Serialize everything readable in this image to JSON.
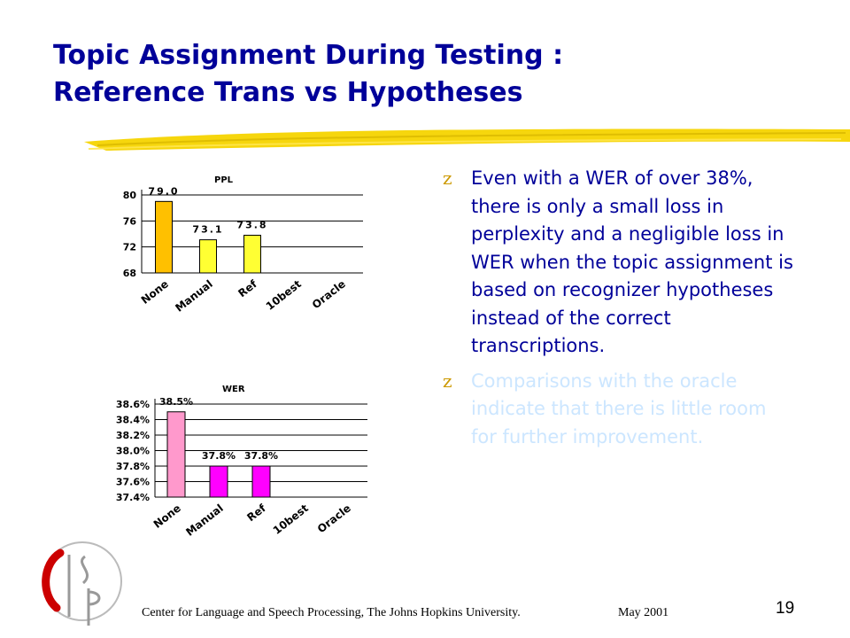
{
  "slide": {
    "title_line1": "Topic Assignment During Testing :",
    "title_line2": "Reference Trans vs Hypotheses",
    "bullets": [
      {
        "text": "Even with a WER of over 38%, there is only a small loss in perplexity and a negligible loss in WER when the topic assignment is based on recognizer hypotheses instead of the correct transcriptions.",
        "color": "#000099"
      },
      {
        "text": "Comparisons with the oracle indicate that there is little room for further improvement.",
        "color": "#cce6ff"
      }
    ],
    "bullet_glyph": "z",
    "footer": "Center for Language and Speech Processing, The Johns Hopkins University.",
    "date": "May 2001",
    "page_number": "19",
    "logo_icon": "clsp-logo-icon"
  },
  "chart_data": [
    {
      "type": "bar",
      "title": "PPL",
      "categories": [
        "None",
        "Manual",
        "Ref",
        "10best",
        "Oracle"
      ],
      "values": [
        79.0,
        73.1,
        73.8,
        null,
        null
      ],
      "data_labels": [
        "79.0",
        "73.1",
        "73.8",
        "",
        ""
      ],
      "yticks": [
        "80",
        "76",
        "72",
        "68"
      ],
      "ytick_values": [
        80,
        76,
        72,
        68
      ],
      "ylim": [
        68,
        80
      ],
      "grid": true,
      "bar_colors": [
        "#ffc000",
        "#ffff33",
        "#ffff33",
        null,
        null
      ]
    },
    {
      "type": "bar",
      "title": "WER",
      "categories": [
        "None",
        "Manual",
        "Ref",
        "10best",
        "Oracle"
      ],
      "values": [
        38.5,
        37.8,
        37.8,
        null,
        null
      ],
      "data_labels": [
        "38.5%",
        "37.8%",
        "37.8%",
        "",
        ""
      ],
      "yticks": [
        "38.6%",
        "38.4%",
        "38.2%",
        "38.0%",
        "37.8%",
        "37.6%",
        "37.4%"
      ],
      "ytick_values": [
        38.6,
        38.4,
        38.2,
        38.0,
        37.8,
        37.6,
        37.4
      ],
      "ylim": [
        37.4,
        38.6
      ],
      "grid": true,
      "bar_colors": [
        "#ff99cc",
        "#ff00ff",
        "#ff00ff",
        null,
        null
      ]
    }
  ]
}
